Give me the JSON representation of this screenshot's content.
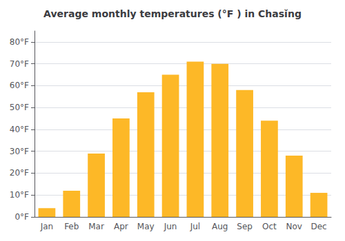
{
  "chart_data": {
    "type": "bar",
    "title": "Average monthly temperatures (°F ) in Chasǐng",
    "categories": [
      "Jan",
      "Feb",
      "Mar",
      "Apr",
      "May",
      "Jun",
      "Jul",
      "Aug",
      "Sep",
      "Oct",
      "Nov",
      "Dec"
    ],
    "values": [
      4,
      12,
      29,
      45,
      57,
      65,
      71,
      70,
      58,
      44,
      28,
      11
    ],
    "color": "#FDB827",
    "ylim": [
      0,
      85
    ],
    "yticks": [
      {
        "value": 0,
        "label": "0°F"
      },
      {
        "value": 10,
        "label": "10°F"
      },
      {
        "value": 20,
        "label": "20°F"
      },
      {
        "value": 30,
        "label": "30°F"
      },
      {
        "value": 40,
        "label": "40°F"
      },
      {
        "value": 50,
        "label": "50°F"
      },
      {
        "value": 60,
        "label": "60°F"
      },
      {
        "value": 70,
        "label": "70°F"
      },
      {
        "value": 80,
        "label": "80°F"
      }
    ],
    "grid": true
  }
}
